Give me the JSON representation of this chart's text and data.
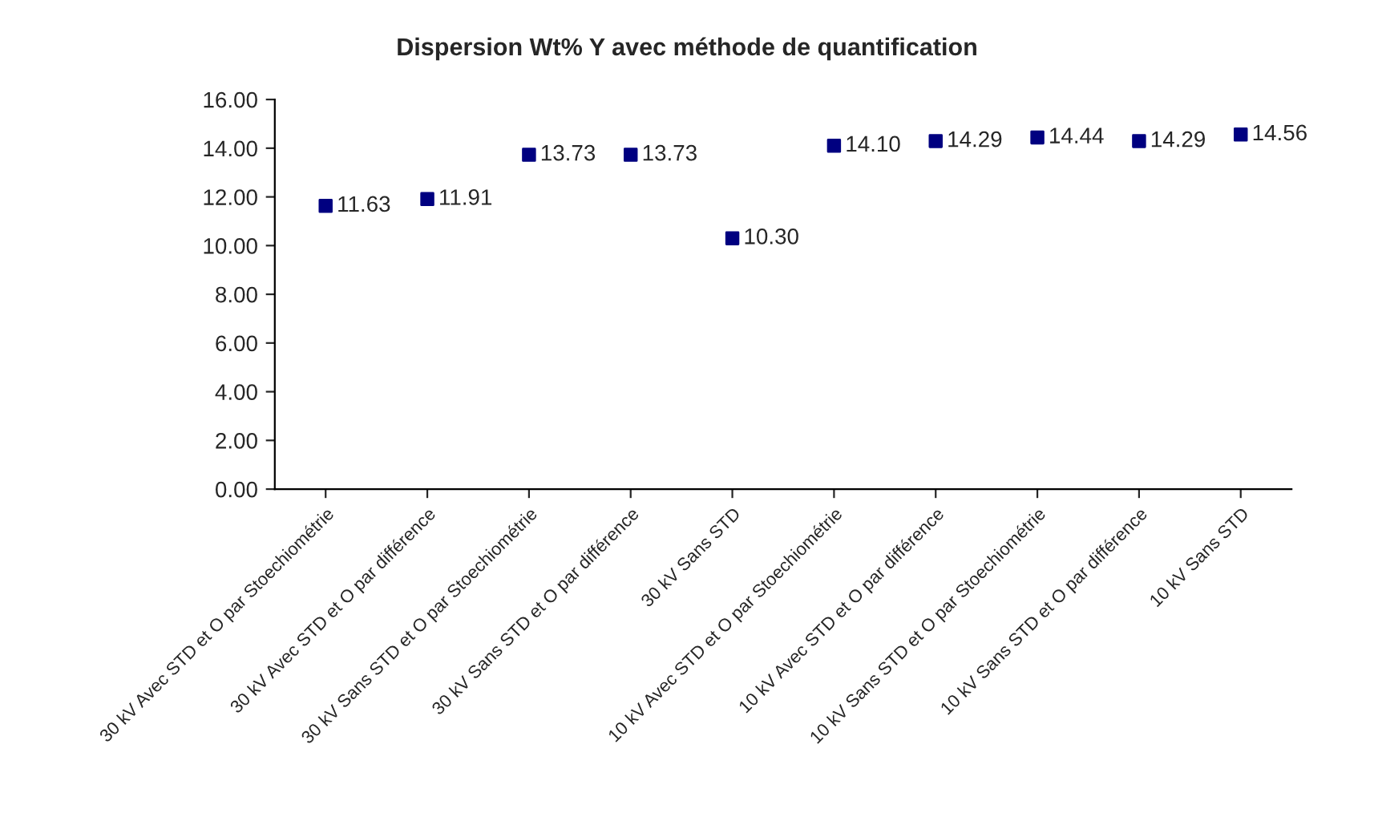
{
  "chart_data": {
    "type": "scatter",
    "title": "Dispersion Wt% Y avec méthode de quantification",
    "categories": [
      "30 kV Avec STD et O par Stoechiométrie",
      "30 kV Avec STD et O par différence",
      "30 kV Sans STD et O par Stoechiométrie",
      "30 kV Sans STD et O par différence",
      "30 kV Sans STD",
      "10 kV Avec STD et O par Stoechiométrie",
      "10 kV Avec STD et O par différence",
      "10 kV Sans STD et O par Stoechiométrie",
      "10 kV Sans STD et O par différence",
      "10 kV Sans STD"
    ],
    "series": [
      {
        "color": "#000080",
        "values": [
          11.63,
          11.91,
          13.73,
          13.73,
          10.3,
          14.1,
          14.29,
          14.44,
          14.29,
          14.56
        ],
        "value_labels": [
          "11.63",
          "11.91",
          "13.73",
          "13.73",
          "10.30",
          "14.10",
          "14.29",
          "14.44",
          "14.29",
          "14.56"
        ]
      }
    ],
    "ylim": [
      0,
      16
    ],
    "yticks": [
      {
        "value": 0,
        "label": "0.00"
      },
      {
        "value": 2,
        "label": "2.00"
      },
      {
        "value": 4,
        "label": "4.00"
      },
      {
        "value": 6,
        "label": "6.00"
      },
      {
        "value": 8,
        "label": "8.00"
      },
      {
        "value": 10,
        "label": "10.00"
      },
      {
        "value": 12,
        "label": "12.00"
      },
      {
        "value": 14,
        "label": "14.00"
      },
      {
        "value": 16,
        "label": "16.00"
      }
    ],
    "marker": "square",
    "grid": false
  }
}
